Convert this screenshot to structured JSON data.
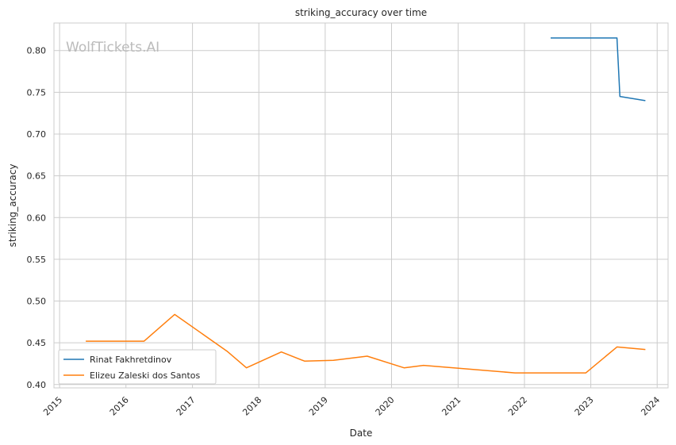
{
  "chart_data": {
    "type": "line",
    "title": "striking_accuracy over time",
    "xlabel": "Date",
    "ylabel": "striking_accuracy",
    "watermark": "WolfTickets.AI",
    "xlim": [
      "2014-12-01",
      "2024-03-01"
    ],
    "ylim": [
      0.396,
      0.833
    ],
    "x_ticks": [
      "2015",
      "2016",
      "2017",
      "2018",
      "2019",
      "2020",
      "2021",
      "2022",
      "2023",
      "2024"
    ],
    "y_ticks": [
      "0.40",
      "0.45",
      "0.50",
      "0.55",
      "0.60",
      "0.65",
      "0.70",
      "0.75",
      "0.80"
    ],
    "grid": true,
    "legend_position": "lower-left",
    "series": [
      {
        "name": "Rinat Fakhretdinov",
        "color": "#1f77b4",
        "points": [
          [
            "2022-05-25",
            0.815
          ],
          [
            "2023-05-25",
            0.815
          ],
          [
            "2023-06-10",
            0.745
          ],
          [
            "2023-10-28",
            0.74
          ]
        ]
      },
      {
        "name": "Elizeu Zaleski dos Santos",
        "color": "#ff7f0e",
        "points": [
          [
            "2015-05-25",
            0.452
          ],
          [
            "2016-04-10",
            0.452
          ],
          [
            "2016-09-25",
            0.484
          ],
          [
            "2017-07-10",
            0.44
          ],
          [
            "2017-10-25",
            0.42
          ],
          [
            "2018-05-05",
            0.439
          ],
          [
            "2018-09-10",
            0.428
          ],
          [
            "2019-02-15",
            0.429
          ],
          [
            "2019-08-20",
            0.434
          ],
          [
            "2020-03-10",
            0.42
          ],
          [
            "2020-06-25",
            0.423
          ],
          [
            "2021-11-10",
            0.414
          ],
          [
            "2022-12-05",
            0.414
          ],
          [
            "2023-05-25",
            0.445
          ],
          [
            "2023-10-28",
            0.442
          ]
        ]
      }
    ]
  }
}
